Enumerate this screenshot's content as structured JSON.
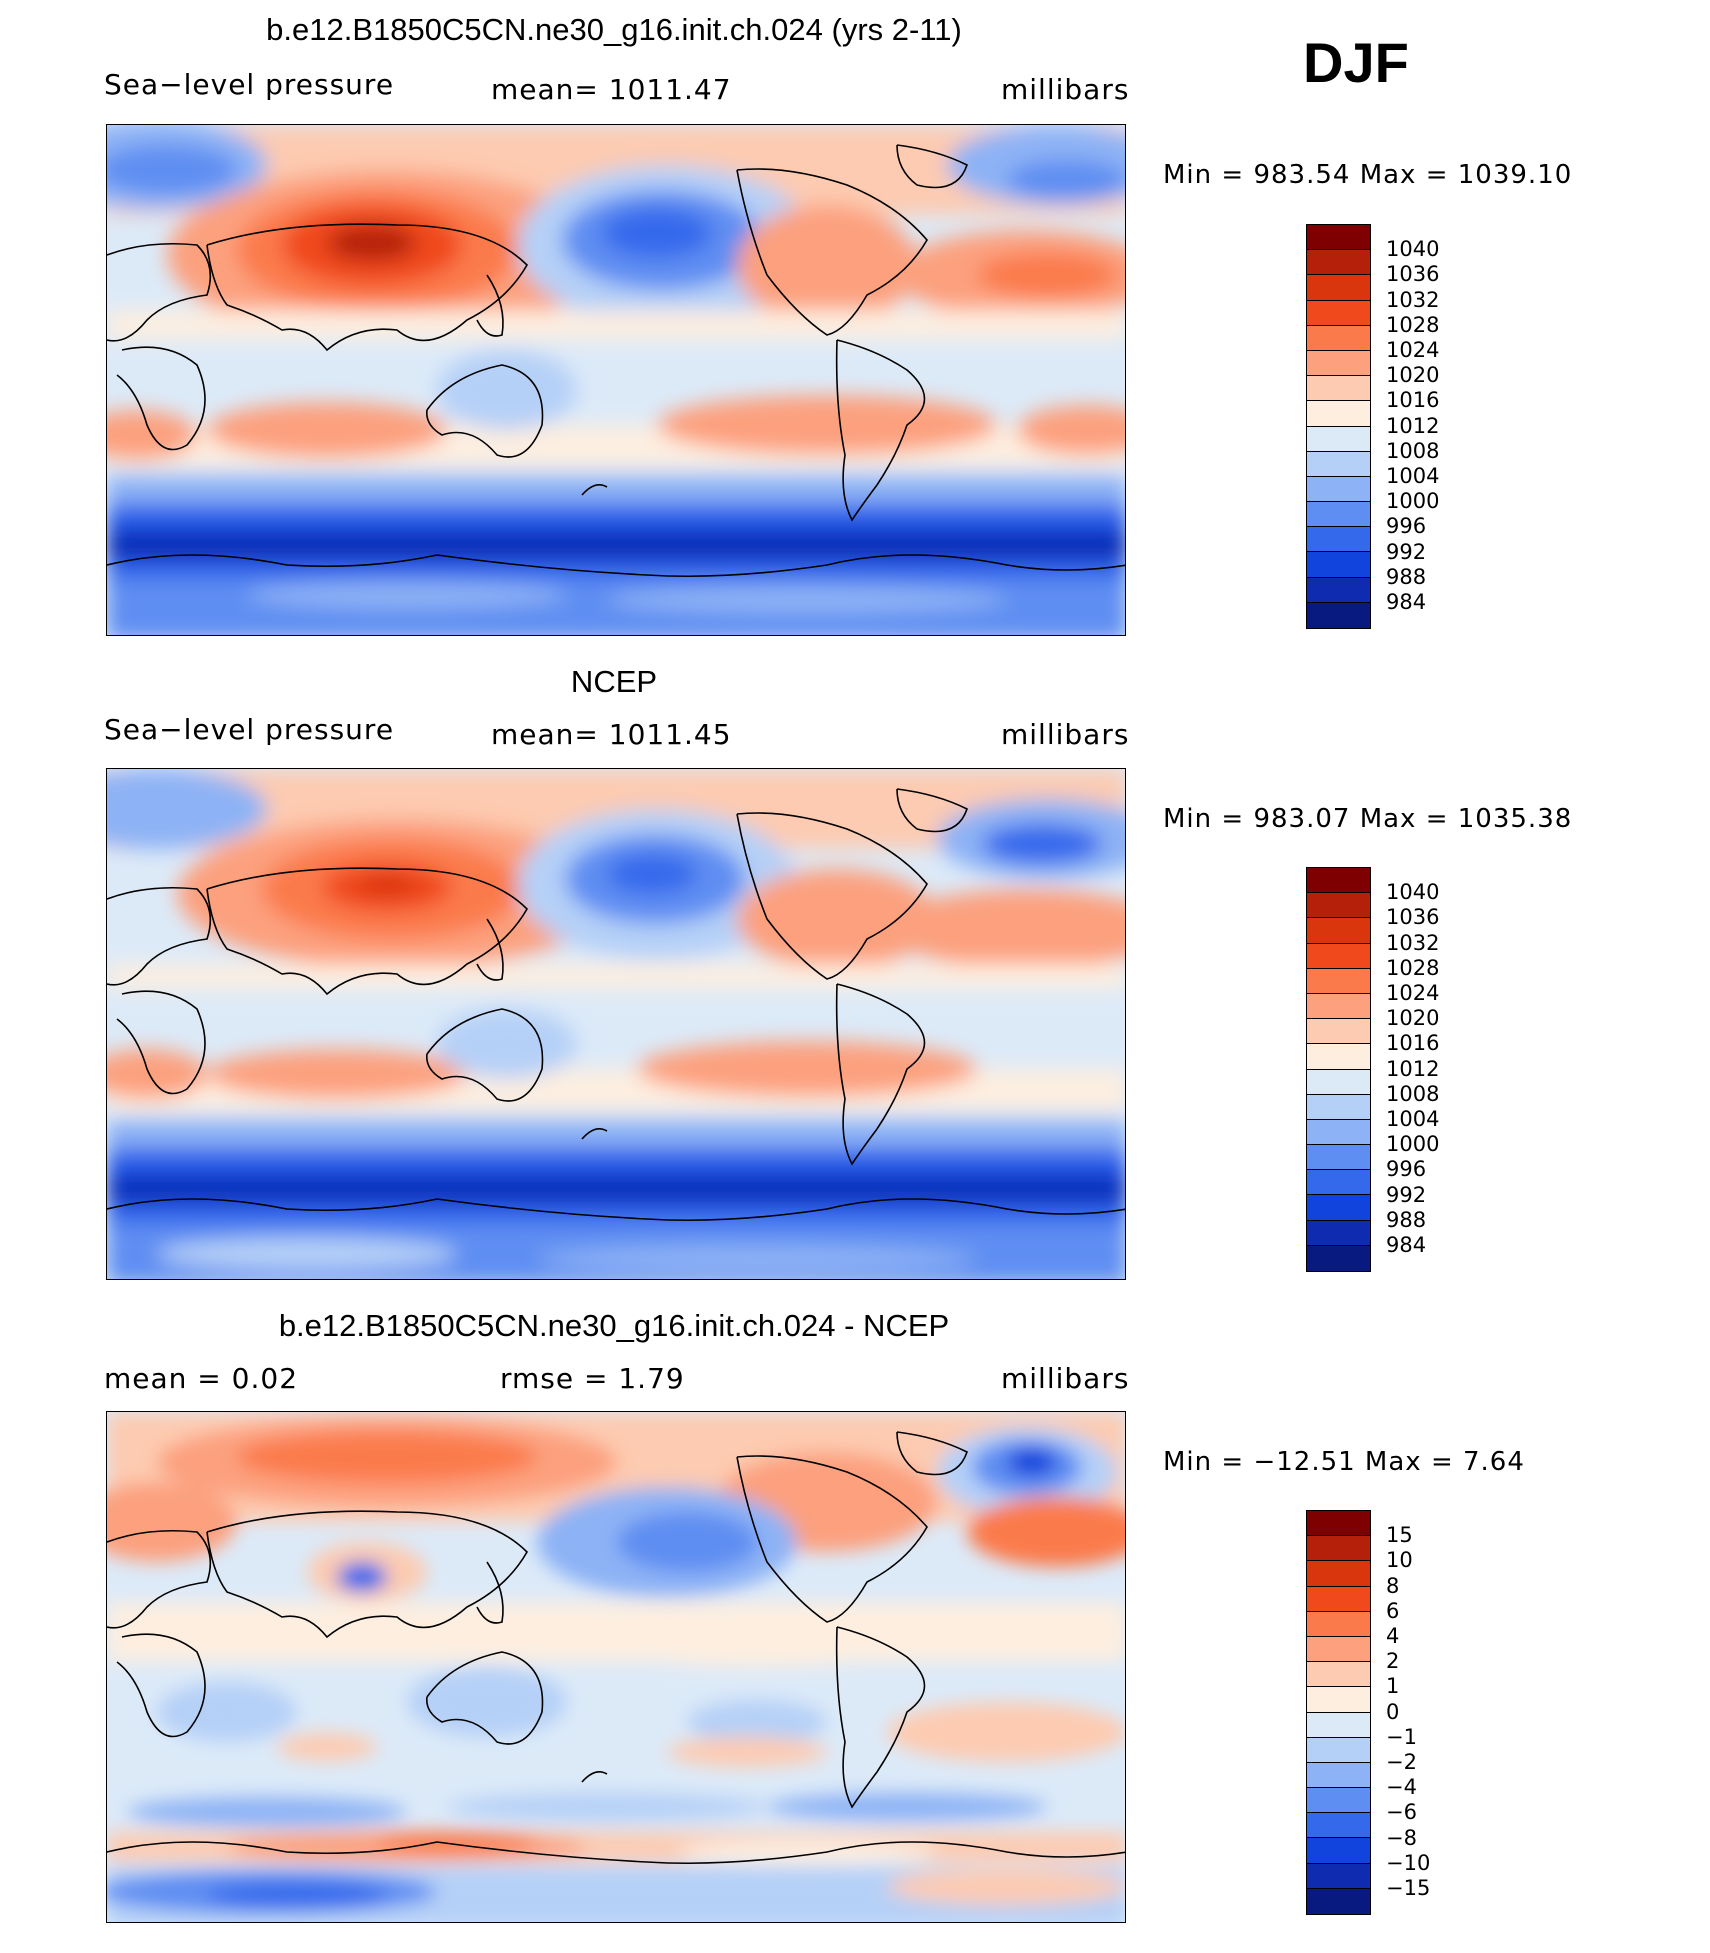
{
  "season": "DJF",
  "panels": [
    {
      "id": "model",
      "title": "b.e12.B1850C5CN.ne30_g16.init.ch.024 (yrs 2-11)",
      "left_label": "Sea−level pressure",
      "center_label": "mean=  1011.47",
      "right_label": "millibars",
      "minmax": "Min  =  983.54  Max  =  1039.10",
      "colorbar": {
        "labels": [
          "1040",
          "1036",
          "1032",
          "1028",
          "1024",
          "1020",
          "1016",
          "1012",
          "1008",
          "1004",
          "1000",
          "996",
          "992",
          "988",
          "984"
        ],
        "colors": [
          "#7f0000",
          "#b5200a",
          "#d9360d",
          "#f04a1c",
          "#fb7a4b",
          "#fca07e",
          "#fdcbb1",
          "#fdeee0",
          "#dceaf8",
          "#b5d0f7",
          "#8db2f5",
          "#5f8ef2",
          "#3469ec",
          "#1144dc",
          "#0f2cb0",
          "#081a80"
        ]
      }
    },
    {
      "id": "obs",
      "title": "NCEP",
      "left_label": "Sea−level pressure",
      "center_label": "mean=  1011.45",
      "right_label": "millibars",
      "minmax": "Min  =  983.07  Max  =  1035.38",
      "colorbar": {
        "labels": [
          "1040",
          "1036",
          "1032",
          "1028",
          "1024",
          "1020",
          "1016",
          "1012",
          "1008",
          "1004",
          "1000",
          "996",
          "992",
          "988",
          "984"
        ],
        "colors": [
          "#7f0000",
          "#b5200a",
          "#d9360d",
          "#f04a1c",
          "#fb7a4b",
          "#fca07e",
          "#fdcbb1",
          "#fdeee0",
          "#dceaf8",
          "#b5d0f7",
          "#8db2f5",
          "#5f8ef2",
          "#3469ec",
          "#1144dc",
          "#0f2cb0",
          "#081a80"
        ]
      }
    },
    {
      "id": "diff",
      "title": "b.e12.B1850C5CN.ne30_g16.init.ch.024 - NCEP",
      "left_label": "mean  =      0.02",
      "center_label": "rmse  =      1.79",
      "right_label": "millibars",
      "minmax": "Min  =  −12.51  Max  =      7.64",
      "colorbar": {
        "labels": [
          "15",
          "10",
          "8",
          "6",
          "4",
          "2",
          "1",
          "0",
          "−1",
          "−2",
          "−4",
          "−6",
          "−8",
          "−10",
          "−15"
        ],
        "colors": [
          "#7f0000",
          "#b5200a",
          "#d9360d",
          "#f04a1c",
          "#fb7a4b",
          "#fca07e",
          "#fdcbb1",
          "#fdeee0",
          "#dceaf8",
          "#b5d0f7",
          "#8db2f5",
          "#5f8ef2",
          "#3469ec",
          "#1144dc",
          "#0f2cb0",
          "#081a80"
        ]
      }
    }
  ]
}
